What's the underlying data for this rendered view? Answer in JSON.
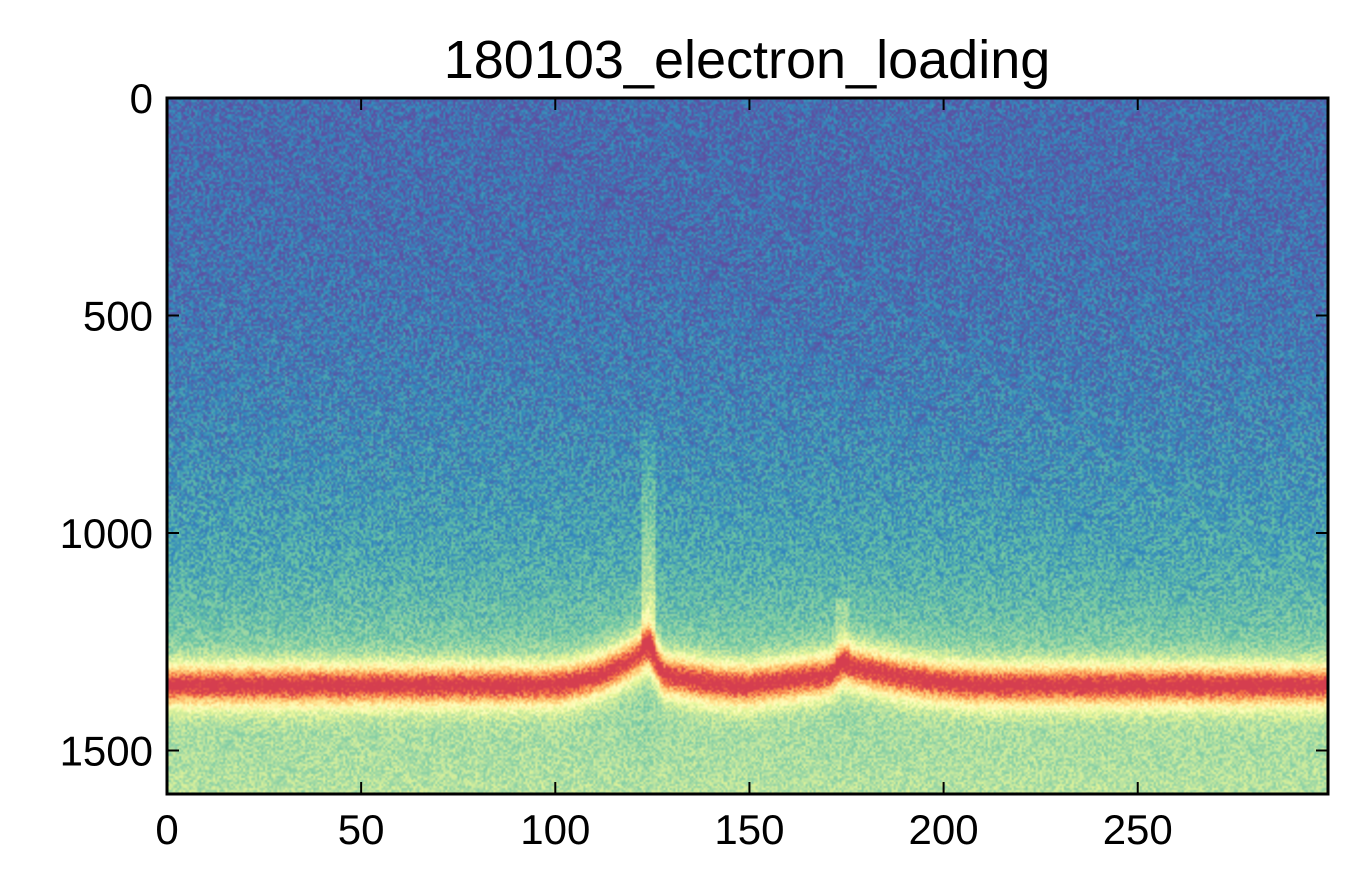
{
  "chart_data": {
    "type": "heatmap",
    "title": "180103_electron_loading",
    "xlabel": "",
    "ylabel": "",
    "colormap": "Spectral_r",
    "x_range": [
      0,
      299
    ],
    "y_range": [
      0,
      1600
    ],
    "y_inverted": true,
    "x_ticks": [
      0,
      50,
      100,
      150,
      200,
      250
    ],
    "x_tick_labels": [
      "0",
      "50",
      "100",
      "150",
      "200",
      "250"
    ],
    "y_ticks": [
      0,
      500,
      1000,
      1500
    ],
    "y_tick_labels": [
      "0",
      "500",
      "1000",
      "1500"
    ],
    "ridge": {
      "baseline_row": 1350,
      "features": [
        {
          "x_start": 95,
          "x_peak": 124,
          "x_end": 128,
          "peak_row": 1265,
          "kind": "rising-spike"
        },
        {
          "x_start": 128,
          "x_peak": 150,
          "x_end": 171,
          "peak_row": 1350,
          "kind": "dip"
        },
        {
          "x_start": 171,
          "x_peak": 174,
          "x_end": 215,
          "peak_row": 1300,
          "kind": "bump"
        }
      ]
    },
    "colors": {
      "low": "#5e4fa2",
      "mid": "#66c2a5",
      "pale": "#ffffbf",
      "high": "#d53e4f"
    }
  }
}
